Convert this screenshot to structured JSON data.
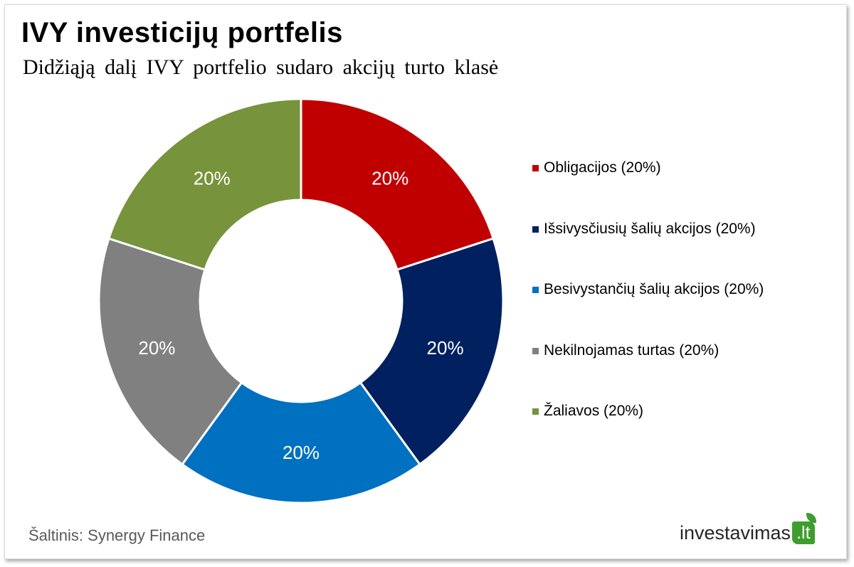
{
  "title": "IVY investicijų portfelis",
  "subtitle": "Didžiąją dalį IVY portfelio sudaro akcijų turto klasė",
  "chart_data": {
    "type": "pie",
    "variant": "donut",
    "categories": [
      "Obligacijos",
      "Išsivysčiusių šalių akcijos",
      "Besivystančių šalių akcijos",
      "Nekilnojamas turtas",
      "Žaliavos"
    ],
    "values": [
      20,
      20,
      20,
      20,
      20
    ],
    "data_labels": [
      "20%",
      "20%",
      "20%",
      "20%",
      "20%"
    ],
    "colors": [
      "#C00000",
      "#002060",
      "#0070C0",
      "#808080",
      "#77933C"
    ],
    "legend": [
      "Obligacijos (20%)",
      "Išsivysčiusių šalių akcijos (20%)",
      "Besivystančių šalių akcijos (20%)",
      "Nekilnojamas turtas (20%)",
      "Žaliavos (20%)"
    ],
    "legend_position": "right"
  },
  "source": "Šaltinis: Synergy Finance",
  "logo": {
    "text": "investavimas",
    "badge": ".lt"
  }
}
